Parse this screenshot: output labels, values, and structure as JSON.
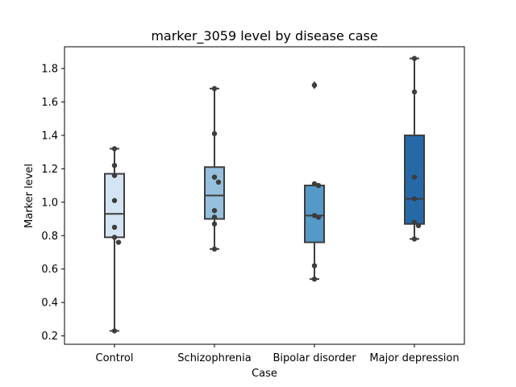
{
  "chart_data": {
    "type": "box",
    "title": "marker_3059 level by disease case",
    "xlabel": "Case",
    "ylabel": "Marker level",
    "ylim": [
      0.15,
      1.93
    ],
    "yticks": [
      0.2,
      0.4,
      0.6,
      0.8,
      1.0,
      1.2,
      1.4,
      1.6,
      1.8
    ],
    "ytick_labels": [
      "0.2",
      "0.4",
      "0.6",
      "0.8",
      "1.0",
      "1.2",
      "1.4",
      "1.6",
      "1.8"
    ],
    "grid": false,
    "categories": [
      "Control",
      "Schizophrenia",
      "Bipolar disorder",
      "Major depression"
    ],
    "boxes": [
      {
        "category": "Control",
        "color": "#d4e4f2",
        "min": 0.23,
        "q1": 0.79,
        "median": 0.93,
        "q3": 1.17,
        "max": 1.32,
        "outliers": [],
        "points": [
          1.32,
          1.22,
          1.16,
          1.01,
          0.85,
          0.79,
          0.76,
          0.23
        ]
      },
      {
        "category": "Schizophrenia",
        "color": "#96c0dd",
        "min": 0.72,
        "q1": 0.9,
        "median": 1.04,
        "q3": 1.21,
        "max": 1.68,
        "outliers": [],
        "points": [
          1.68,
          1.41,
          1.15,
          1.12,
          0.95,
          0.91,
          0.87,
          0.72
        ]
      },
      {
        "category": "Bipolar disorder",
        "color": "#5499c8",
        "min": 0.54,
        "q1": 0.76,
        "median": 0.92,
        "q3": 1.1,
        "max": 1.1,
        "outliers": [
          1.7
        ],
        "points": [
          1.7,
          1.11,
          1.1,
          0.92,
          0.91,
          0.62,
          0.54
        ]
      },
      {
        "category": "Major depression",
        "color": "#2669a9",
        "min": 0.78,
        "q1": 0.87,
        "median": 1.02,
        "q3": 1.4,
        "max": 1.86,
        "outliers": [],
        "points": [
          1.86,
          1.66,
          1.15,
          1.02,
          0.88,
          0.86,
          0.78
        ]
      }
    ]
  }
}
